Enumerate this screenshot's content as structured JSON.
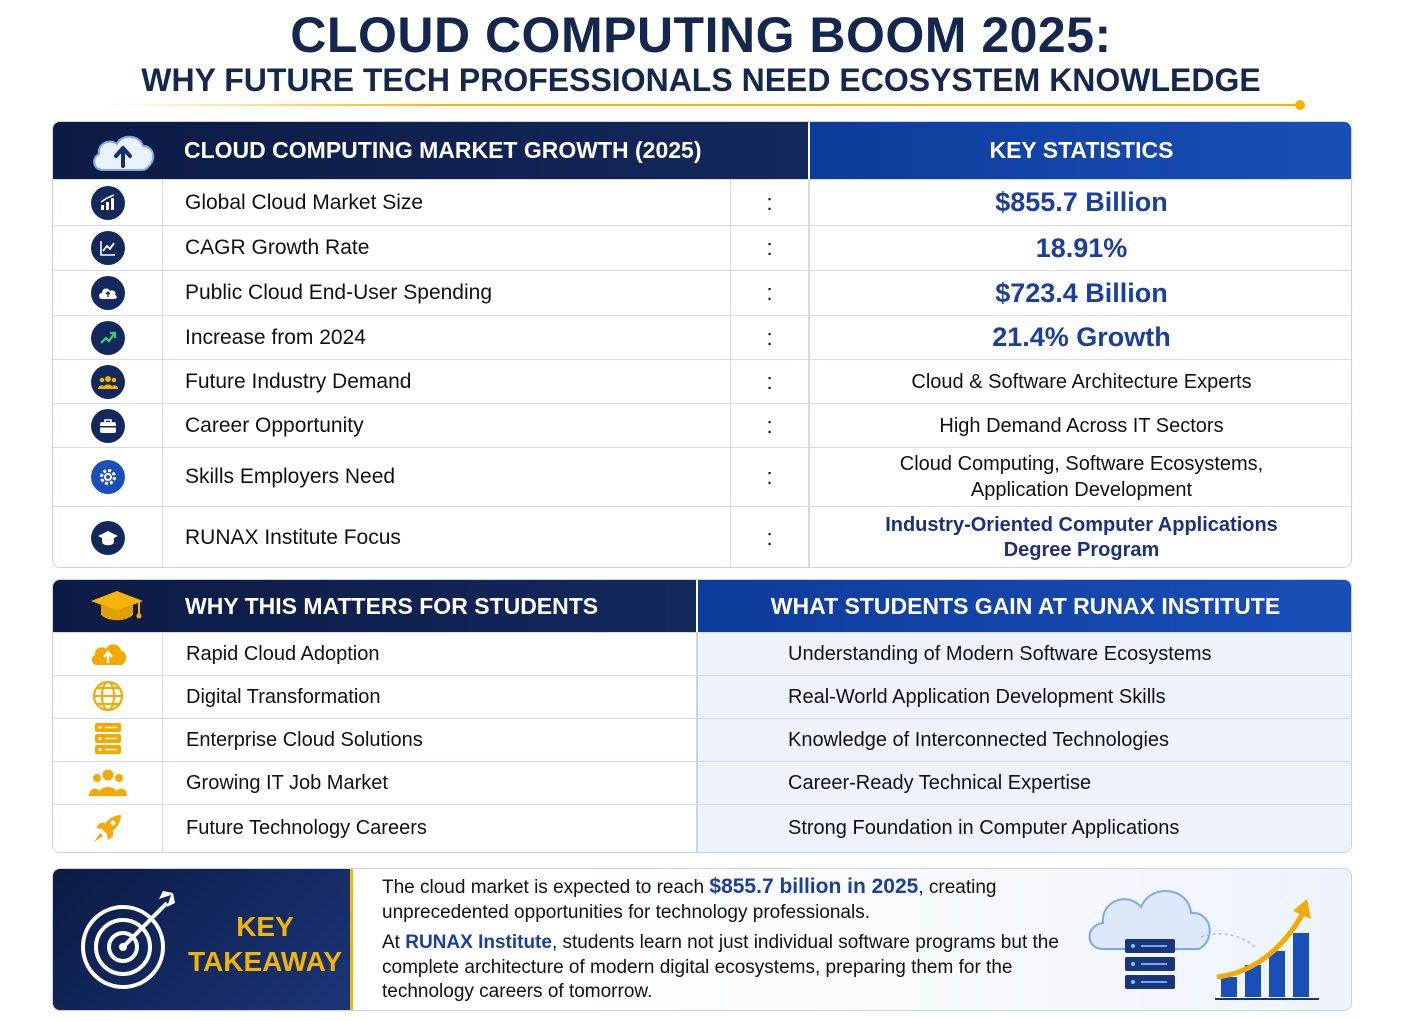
{
  "header": {
    "title": "CLOUD COMPUTING BOOM 2025:",
    "subtitle": "WHY FUTURE TECH PROFESSIONALS NEED ECOSYSTEM KNOWLEDGE"
  },
  "market_table": {
    "left_heading": "CLOUD COMPUTING MARKET GROWTH (2025)",
    "right_heading": "KEY STATISTICS",
    "rows": [
      {
        "label": "Global Cloud Market Size",
        "separator": ":",
        "value": "$855.7 Billion",
        "icon": "bar-chart-icon"
      },
      {
        "label": "CAGR Growth Rate",
        "separator": ":",
        "value": "18.91%",
        "icon": "line-chart-icon"
      },
      {
        "label": "Public Cloud End-User Spending",
        "separator": ":",
        "value": "$723.4 Billion",
        "icon": "cloud-icon"
      },
      {
        "label": "Increase from 2024",
        "separator": ":",
        "value": "21.4% Growth",
        "icon": "trend-up-icon"
      },
      {
        "label": "Future Industry Demand",
        "separator": ":",
        "value": "Cloud & Software Architecture Experts",
        "icon": "people-icon"
      },
      {
        "label": "Career Opportunity",
        "separator": ":",
        "value": "High Demand Across IT Sectors",
        "icon": "briefcase-icon"
      },
      {
        "label": "Skills Employers Need",
        "separator": ":",
        "value_line1": "Cloud Computing, Software Ecosystems,",
        "value_line2": "Application Development",
        "icon": "gear-icon"
      },
      {
        "label": "RUNAX Institute Focus",
        "separator": ":",
        "value_line1": "Industry-Oriented Computer Applications",
        "value_line2": "Degree Program",
        "icon": "graduation-cap-icon"
      }
    ]
  },
  "students_table": {
    "left_heading": "WHY THIS MATTERS FOR STUDENTS",
    "right_heading": "WHAT STUDENTS GAIN AT RUNAX INSTITUTE",
    "rows": [
      {
        "reason": "Rapid Cloud Adoption",
        "gain": "Understanding of Modern Software Ecosystems",
        "icon": "cloud-upload-icon"
      },
      {
        "reason": "Digital Transformation",
        "gain": "Real-World Application Development Skills",
        "icon": "globe-icon"
      },
      {
        "reason": "Enterprise Cloud Solutions",
        "gain": "Knowledge of Interconnected Technologies",
        "icon": "server-icon"
      },
      {
        "reason": "Growing IT Job Market",
        "gain": "Career-Ready Technical Expertise",
        "icon": "people-icon"
      },
      {
        "reason": "Future Technology Careers",
        "gain": "Strong Foundation in Computer Applications",
        "icon": "rocket-icon"
      }
    ]
  },
  "takeaway": {
    "label_line1": "KEY",
    "label_line2": "TAKEAWAY",
    "p1_before": "The cloud market is expected to reach ",
    "p1_highlight": "$855.7 billion in 2025",
    "p1_after": ", creating unprecedented opportunities for technology professionals.",
    "p2_before": "At ",
    "p2_highlight": "RUNAX Institute",
    "p2_after": ", students learn not just individual software programs but the complete architecture of modern digital ecosystems, preparing them for the technology careers of tomorrow."
  },
  "colors": {
    "navy": "#0c1b45",
    "blue": "#1a3fa0",
    "gold": "#f5b400"
  }
}
